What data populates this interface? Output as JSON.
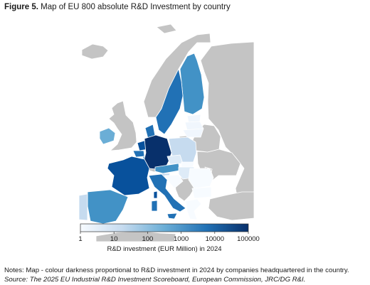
{
  "figure": {
    "label": "Figure 5.",
    "title": "Map of EU 800 absolute R&D Investment by country"
  },
  "map": {
    "land_color_non_eu": "#c4c4c4",
    "border_color": "#ffffff",
    "investment_levels": {
      "Germany": "100000",
      "France": "10000",
      "Netherlands": "10000",
      "Sweden": "10000",
      "Finland": "1000",
      "Italy": "1000",
      "Spain": "1000",
      "Denmark": "1000",
      "Belgium": "1000",
      "Ireland": "100",
      "Austria": "1000",
      "Luxembourg": "1000",
      "Poland": "10",
      "Czechia": "10",
      "Portugal": "10",
      "Hungary": "10",
      "Greece": "10",
      "Slovenia": "10",
      "Croatia": "1",
      "Slovakia": "1",
      "Romania": "1",
      "Bulgaria": "1",
      "Estonia": "1",
      "Latvia": "1",
      "Lithuania": "1",
      "Malta": "1",
      "Cyprus": "1"
    }
  },
  "colorbar": {
    "ticks": [
      "1",
      "10",
      "100",
      "1000",
      "10000",
      "100000"
    ],
    "label": "R&D investment (EUR Million) in 2024",
    "colors": [
      "#f7fbff",
      "#c6dbef",
      "#6baed6",
      "#2171b5",
      "#08306b"
    ],
    "scale": "log"
  },
  "notes": {
    "note": "Notes: Map - colour darkness proportional to R&D investment in 2024 by companies headquartered in the country.",
    "source": "Source: The 2025 EU Industrial R&D Investment Scoreboard, European Commission, JRC/DG R&I."
  }
}
